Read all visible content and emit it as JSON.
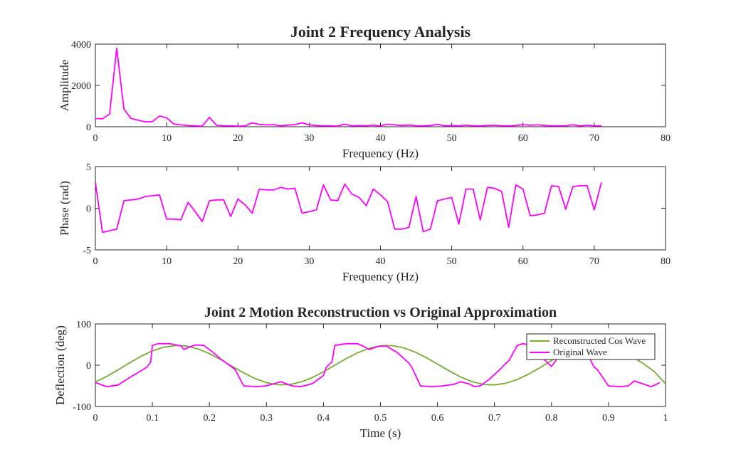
{
  "chart_data": [
    {
      "type": "line",
      "title": "Joint 2 Frequency Analysis",
      "xlabel": "Frequency (Hz)",
      "ylabel": "Amplitude",
      "xlim": [
        0,
        80
      ],
      "ylim": [
        0,
        4000
      ],
      "xticks": [
        0,
        10,
        20,
        30,
        40,
        50,
        60,
        70,
        80
      ],
      "yticks": [
        0,
        2000,
        4000
      ],
      "grid": false,
      "color": "#ff00ff",
      "series": [
        {
          "x": [
            0,
            1,
            2,
            3,
            4,
            5,
            6,
            7,
            8,
            9,
            10,
            11,
            12,
            13,
            14,
            15,
            16,
            17,
            18,
            19,
            20,
            21,
            22,
            23,
            24,
            25,
            26,
            27,
            28,
            29,
            30,
            31,
            32,
            33,
            34,
            35,
            36,
            37,
            38,
            39,
            40,
            41,
            42,
            43,
            44,
            45,
            46,
            47,
            48,
            49,
            50,
            51,
            52,
            53,
            54,
            55,
            56,
            57,
            58,
            59,
            60,
            61,
            62,
            63,
            64,
            65,
            66,
            67,
            68,
            69,
            70,
            71
          ],
          "values": [
            400,
            380,
            620,
            3800,
            850,
            400,
            320,
            230,
            250,
            520,
            430,
            130,
            90,
            60,
            40,
            30,
            450,
            70,
            50,
            40,
            30,
            40,
            190,
            110,
            90,
            100,
            40,
            80,
            100,
            190,
            90,
            60,
            50,
            40,
            30,
            120,
            40,
            60,
            50,
            70,
            40,
            120,
            90,
            60,
            80,
            50,
            40,
            60,
            110,
            50,
            60,
            40,
            70,
            50,
            40,
            60,
            70,
            50,
            40,
            60,
            100,
            70,
            90,
            60,
            50,
            40,
            50,
            90,
            40,
            70,
            50,
            40
          ]
        }
      ]
    },
    {
      "type": "line",
      "title": "",
      "xlabel": "Frequency (Hz)",
      "ylabel": "Phase (rad)",
      "xlim": [
        0,
        80
      ],
      "ylim": [
        -5,
        5
      ],
      "xticks": [
        0,
        10,
        20,
        30,
        40,
        50,
        60,
        70,
        80
      ],
      "yticks": [
        -5,
        0,
        5
      ],
      "grid": false,
      "color": "#ff00ff",
      "series": [
        {
          "x": [
            0,
            1,
            2,
            3,
            4,
            5,
            6,
            7,
            8,
            9,
            10,
            11,
            12,
            13,
            14,
            15,
            16,
            17,
            18,
            19,
            20,
            21,
            22,
            23,
            24,
            25,
            26,
            27,
            28,
            29,
            30,
            31,
            32,
            33,
            34,
            35,
            36,
            37,
            38,
            39,
            40,
            41,
            42,
            43,
            44,
            45,
            46,
            47,
            48,
            49,
            50,
            51,
            52,
            53,
            54,
            55,
            56,
            57,
            58,
            59,
            60,
            61,
            62,
            63,
            64,
            65,
            66,
            67,
            68,
            69,
            70,
            71
          ],
          "values": [
            3.1,
            -2.9,
            -2.7,
            -2.5,
            0.9,
            1.0,
            1.1,
            1.4,
            1.5,
            1.6,
            -1.3,
            -1.3,
            -1.4,
            0.7,
            -0.4,
            -1.6,
            0.9,
            1.0,
            1.0,
            -1.0,
            1.1,
            0.4,
            -0.6,
            2.3,
            2.2,
            2.2,
            2.5,
            2.3,
            2.4,
            -0.6,
            -0.4,
            -0.2,
            2.8,
            1.0,
            0.9,
            2.9,
            1.7,
            1.3,
            0.3,
            2.3,
            1.6,
            0.8,
            -2.5,
            -2.5,
            -2.3,
            1.4,
            -2.8,
            -2.5,
            0.9,
            1.1,
            1.3,
            -1.9,
            2.3,
            2.3,
            -1.4,
            2.5,
            2.4,
            2.0,
            -2.3,
            2.8,
            2.3,
            -0.9,
            -0.8,
            -0.6,
            2.7,
            2.6,
            -0.1,
            2.6,
            2.7,
            2.7,
            -0.2,
            3.1
          ]
        }
      ]
    },
    {
      "type": "line",
      "title": "Joint 2 Motion Reconstruction vs Original Approximation",
      "xlabel": "Time (s)",
      "ylabel": "Deflection (deg)",
      "xlim": [
        0,
        1
      ],
      "ylim": [
        -100,
        100
      ],
      "xticks": [
        0,
        0.1,
        0.2,
        0.3,
        0.4,
        0.5,
        0.6,
        0.7,
        0.8,
        0.9,
        1
      ],
      "yticks": [
        -100,
        0,
        100
      ],
      "grid": false,
      "legend": "top-right",
      "series": [
        {
          "name": "Reconstructed Cos Wave",
          "color": "#77ac30",
          "x": [
            0,
            0.02,
            0.04,
            0.06,
            0.08,
            0.1,
            0.12,
            0.14,
            0.16,
            0.18,
            0.2,
            0.22,
            0.24,
            0.26,
            0.28,
            0.3,
            0.32,
            0.34,
            0.36,
            0.38,
            0.4,
            0.42,
            0.44,
            0.46,
            0.48,
            0.5,
            0.52,
            0.54,
            0.56,
            0.58,
            0.6,
            0.62,
            0.64,
            0.66,
            0.68,
            0.7,
            0.72,
            0.74,
            0.76,
            0.78,
            0.8,
            0.82,
            0.84,
            0.86,
            0.88,
            0.9,
            0.92,
            0.94,
            0.96,
            0.98,
            1.0
          ],
          "values": [
            -40.7,
            -27.3,
            -11.2,
            5.7,
            21.5,
            34.6,
            43.7,
            47.8,
            46.3,
            39.5,
            28.1,
            13.4,
            -2.8,
            -18.7,
            -32.3,
            -42.3,
            -47.5,
            -47.0,
            -41.0,
            -30.2,
            -16.0,
            0.0,
            16.0,
            30.2,
            41.0,
            47.0,
            47.5,
            42.3,
            32.3,
            18.7,
            2.8,
            -13.4,
            -28.1,
            -39.5,
            -46.3,
            -47.8,
            -43.7,
            -34.6,
            -21.5,
            -5.7,
            11.2,
            27.3,
            40.7,
            49.5,
            52.0,
            47.5,
            36.9,
            21.8,
            5.0,
            -15.0,
            -45.0
          ]
        },
        {
          "name": "Original Wave",
          "color": "#ff00ff",
          "x": [
            0,
            0.02,
            0.04,
            0.06,
            0.09,
            0.097,
            0.1,
            0.11,
            0.13,
            0.15,
            0.155,
            0.165,
            0.175,
            0.19,
            0.205,
            0.22,
            0.24,
            0.245,
            0.26,
            0.28,
            0.3,
            0.31,
            0.325,
            0.335,
            0.345,
            0.36,
            0.38,
            0.4,
            0.405,
            0.415,
            0.42,
            0.44,
            0.46,
            0.47,
            0.48,
            0.495,
            0.51,
            0.53,
            0.55,
            0.555,
            0.57,
            0.59,
            0.61,
            0.63,
            0.64,
            0.655,
            0.665,
            0.675,
            0.69,
            0.71,
            0.72,
            0.725,
            0.74,
            0.75,
            0.765,
            0.775,
            0.79,
            0.8,
            0.815,
            0.835,
            0.86,
            0.875,
            0.88,
            0.9,
            0.92,
            0.935,
            0.945,
            0.96,
            0.975,
            0.99
          ],
          "values": [
            -42,
            -52,
            -48,
            -30,
            -5,
            8,
            48,
            52,
            52,
            47,
            38,
            44,
            49,
            48,
            33,
            15,
            -5,
            -10,
            -50,
            -52,
            -50,
            -46,
            -40,
            -45,
            -50,
            -52,
            -45,
            -25,
            -5,
            8,
            48,
            52,
            52,
            46,
            38,
            45,
            47,
            30,
            5,
            -5,
            -50,
            -52,
            -50,
            -46,
            -40,
            -45,
            -52,
            -50,
            -35,
            -10,
            5,
            10,
            48,
            52,
            48,
            30,
            10,
            -3,
            25,
            50,
            35,
            -5,
            -10,
            -50,
            -52,
            -50,
            -38,
            -45,
            -52,
            -42
          ]
        }
      ]
    }
  ]
}
